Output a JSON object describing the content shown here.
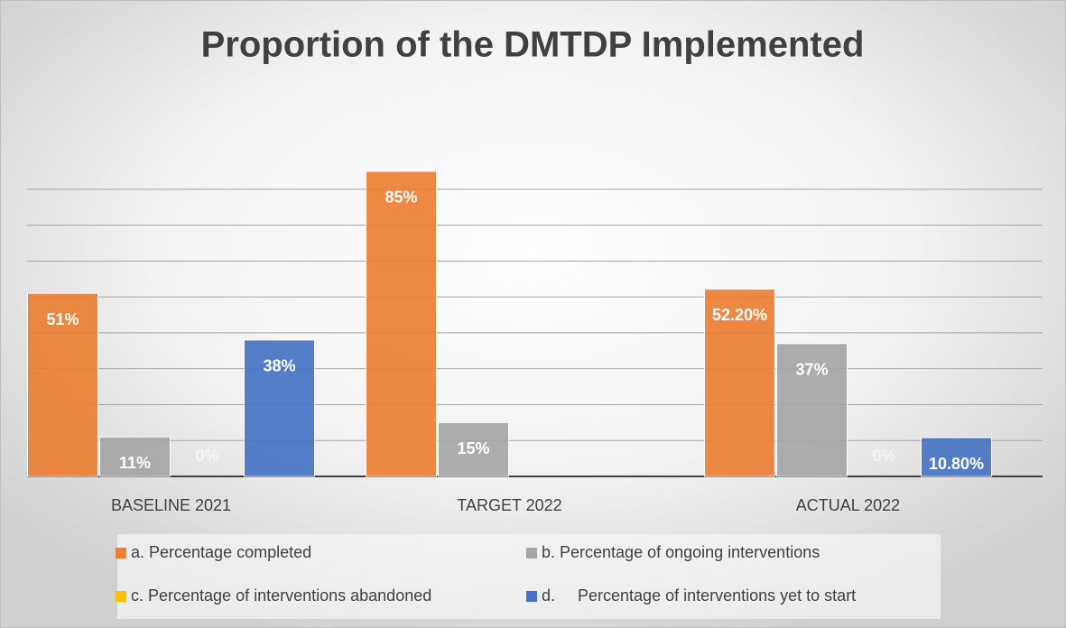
{
  "chart_data": {
    "type": "bar",
    "title": "Proportion of the DMTDP Implemented",
    "categories": [
      "BASELINE 2021",
      "TARGET 2022",
      "ACTUAL 2022"
    ],
    "series": [
      {
        "name": "a. Percentage completed",
        "color": "#ed7d31",
        "values": [
          51,
          85,
          52.2
        ],
        "value_labels": [
          "51%",
          "85%",
          "52.20%"
        ]
      },
      {
        "name": "b. Percentage of ongoing interventions",
        "color": "#a5a5a5",
        "values": [
          11,
          15,
          37
        ],
        "value_labels": [
          "11%",
          "15%",
          "37%"
        ]
      },
      {
        "name": "c. Percentage of interventions abandoned",
        "color": "#ffc000",
        "values": [
          0,
          null,
          0
        ],
        "value_labels": [
          "0%",
          null,
          "0%"
        ]
      },
      {
        "name": "d.     Percentage of interventions yet to start",
        "color": "#4472c4",
        "values": [
          38,
          null,
          10.8
        ],
        "value_labels": [
          "38%",
          null,
          "10.80%"
        ]
      }
    ],
    "ylim": [
      0,
      90
    ],
    "yticks": [
      0,
      10,
      20,
      30,
      40,
      50,
      60,
      70,
      80
    ],
    "grid": true
  }
}
